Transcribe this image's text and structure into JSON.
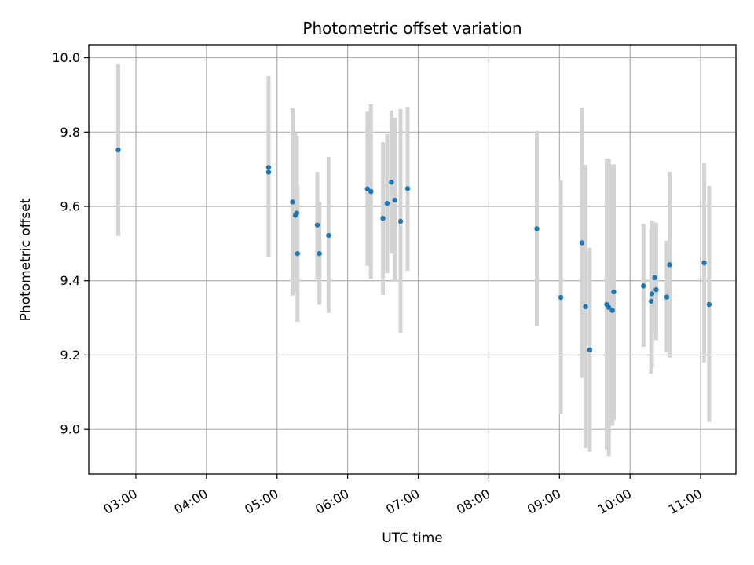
{
  "chart_data": {
    "type": "scatter",
    "title": "Photometric offset variation",
    "xlabel": "UTC time",
    "ylabel": "Photometric offset",
    "x_unit": "hours UTC",
    "xlim": [
      2.333,
      11.5
    ],
    "ylim": [
      8.88,
      10.035
    ],
    "grid": true,
    "x_ticks": [
      {
        "value": 3,
        "label": "03:00"
      },
      {
        "value": 4,
        "label": "04:00"
      },
      {
        "value": 5,
        "label": "05:00"
      },
      {
        "value": 6,
        "label": "06:00"
      },
      {
        "value": 7,
        "label": "07:00"
      },
      {
        "value": 8,
        "label": "08:00"
      },
      {
        "value": 9,
        "label": "09:00"
      },
      {
        "value": 10,
        "label": "10:00"
      },
      {
        "value": 11,
        "label": "11:00"
      }
    ],
    "y_ticks": [
      {
        "value": 9.0,
        "label": "9.0"
      },
      {
        "value": 9.2,
        "label": "9.2"
      },
      {
        "value": 9.4,
        "label": "9.4"
      },
      {
        "value": 9.6,
        "label": "9.6"
      },
      {
        "value": 9.8,
        "label": "9.8"
      },
      {
        "value": 10.0,
        "label": "10.0"
      }
    ],
    "colors": {
      "point": "#1f77b4",
      "errorbar": "#d3d3d3",
      "grid": "#b0b0b0"
    },
    "points": [
      {
        "x": 2.75,
        "y": 9.752,
        "ylo": 9.52,
        "yhi": 9.983
      },
      {
        "x": 4.88,
        "y": 9.705,
        "ylo": 9.463,
        "yhi": 9.95
      },
      {
        "x": 4.88,
        "y": 9.692,
        "ylo": 9.463,
        "yhi": 9.95
      },
      {
        "x": 5.22,
        "y": 9.612,
        "ylo": 9.36,
        "yhi": 9.864
      },
      {
        "x": 5.26,
        "y": 9.576,
        "ylo": 9.37,
        "yhi": 9.797
      },
      {
        "x": 5.28,
        "y": 9.582,
        "ylo": 9.38,
        "yhi": 9.79
      },
      {
        "x": 5.29,
        "y": 9.473,
        "ylo": 9.29,
        "yhi": 9.655
      },
      {
        "x": 5.57,
        "y": 9.55,
        "ylo": 9.405,
        "yhi": 9.693
      },
      {
        "x": 5.6,
        "y": 9.473,
        "ylo": 9.335,
        "yhi": 9.613
      },
      {
        "x": 5.73,
        "y": 9.522,
        "ylo": 9.313,
        "yhi": 9.733
      },
      {
        "x": 6.28,
        "y": 9.647,
        "ylo": 9.44,
        "yhi": 9.855
      },
      {
        "x": 6.33,
        "y": 9.64,
        "ylo": 9.405,
        "yhi": 9.875
      },
      {
        "x": 6.5,
        "y": 9.568,
        "ylo": 9.362,
        "yhi": 9.773
      },
      {
        "x": 6.56,
        "y": 9.608,
        "ylo": 9.42,
        "yhi": 9.795
      },
      {
        "x": 6.62,
        "y": 9.665,
        "ylo": 9.473,
        "yhi": 9.858
      },
      {
        "x": 6.67,
        "y": 9.617,
        "ylo": 9.397,
        "yhi": 9.838
      },
      {
        "x": 6.75,
        "y": 9.56,
        "ylo": 9.26,
        "yhi": 9.862
      },
      {
        "x": 6.85,
        "y": 9.648,
        "ylo": 9.427,
        "yhi": 9.868
      },
      {
        "x": 8.68,
        "y": 9.54,
        "ylo": 9.277,
        "yhi": 9.803
      },
      {
        "x": 9.02,
        "y": 9.355,
        "ylo": 9.04,
        "yhi": 9.67
      },
      {
        "x": 9.32,
        "y": 9.502,
        "ylo": 9.138,
        "yhi": 9.866
      },
      {
        "x": 9.37,
        "y": 9.33,
        "ylo": 8.95,
        "yhi": 9.712
      },
      {
        "x": 9.43,
        "y": 9.214,
        "ylo": 8.94,
        "yhi": 9.489
      },
      {
        "x": 9.67,
        "y": 9.336,
        "ylo": 8.946,
        "yhi": 9.729
      },
      {
        "x": 9.7,
        "y": 9.328,
        "ylo": 8.928,
        "yhi": 9.728
      },
      {
        "x": 9.75,
        "y": 9.32,
        "ylo": 9.01,
        "yhi": 9.713
      },
      {
        "x": 9.77,
        "y": 9.37,
        "ylo": 9.025,
        "yhi": 9.713
      },
      {
        "x": 10.19,
        "y": 9.386,
        "ylo": 9.222,
        "yhi": 9.553
      },
      {
        "x": 10.3,
        "y": 9.345,
        "ylo": 9.15,
        "yhi": 9.54
      },
      {
        "x": 10.31,
        "y": 9.365,
        "ylo": 9.168,
        "yhi": 9.562
      },
      {
        "x": 10.35,
        "y": 9.408,
        "ylo": 9.262,
        "yhi": 9.557
      },
      {
        "x": 10.37,
        "y": 9.376,
        "ylo": 9.24,
        "yhi": 9.555
      },
      {
        "x": 10.52,
        "y": 9.356,
        "ylo": 9.207,
        "yhi": 9.507
      },
      {
        "x": 10.56,
        "y": 9.443,
        "ylo": 9.193,
        "yhi": 9.693
      },
      {
        "x": 11.05,
        "y": 9.448,
        "ylo": 9.18,
        "yhi": 9.716
      },
      {
        "x": 11.12,
        "y": 9.336,
        "ylo": 9.02,
        "yhi": 9.655
      }
    ]
  }
}
